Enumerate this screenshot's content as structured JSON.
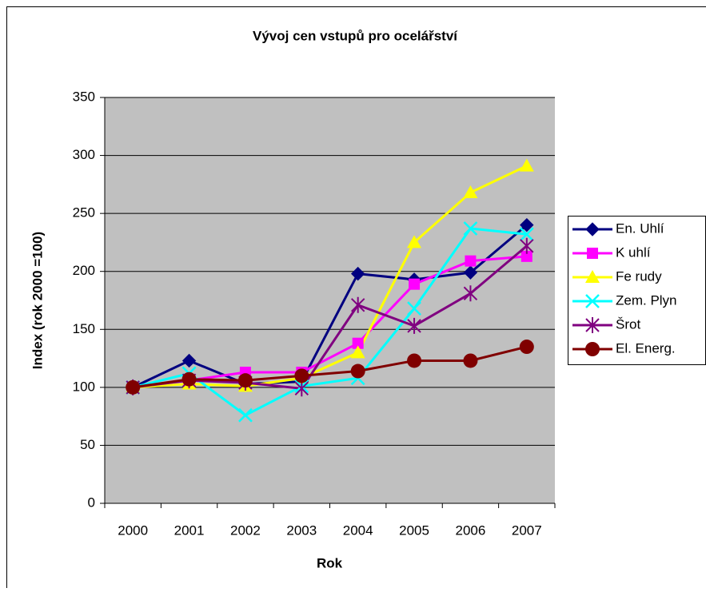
{
  "chart_data": {
    "type": "line",
    "title": "Vývoj cen vstupů pro ocelářství",
    "x_label": "Rok",
    "y_label": "Index (rok 2000 =100)",
    "categories": [
      "2000",
      "2001",
      "2002",
      "2003",
      "2004",
      "2005",
      "2006",
      "2007"
    ],
    "ylim": [
      0,
      350
    ],
    "yticks": [
      0,
      50,
      100,
      150,
      200,
      250,
      300,
      350
    ],
    "grid": true,
    "legend": "right",
    "background": "#c0c0c0",
    "series": [
      {
        "name": "En. Uhlí",
        "color": "#000080",
        "marker": "diamond",
        "values": [
          100,
          123,
          103,
          105,
          198,
          193,
          199,
          240
        ]
      },
      {
        "name": "K uhlí",
        "color": "#ff00ff",
        "marker": "square",
        "values": [
          100,
          106,
          113,
          113,
          138,
          189,
          209,
          213
        ]
      },
      {
        "name": "Fe rudy",
        "color": "#ffff00",
        "marker": "triangle",
        "values": [
          100,
          103,
          101,
          108,
          130,
          225,
          268,
          291
        ]
      },
      {
        "name": "Zem. Plyn",
        "color": "#00ffff",
        "marker": "x",
        "values": [
          100,
          112,
          76,
          101,
          108,
          168,
          237,
          232
        ]
      },
      {
        "name": "Šrot",
        "color": "#800080",
        "marker": "star",
        "values": [
          100,
          106,
          104,
          99,
          171,
          153,
          181,
          222
        ]
      },
      {
        "name": "El. Energ.",
        "color": "#800000",
        "marker": "circle",
        "values": [
          100,
          107,
          106,
          110,
          114,
          123,
          123,
          135
        ]
      }
    ]
  }
}
